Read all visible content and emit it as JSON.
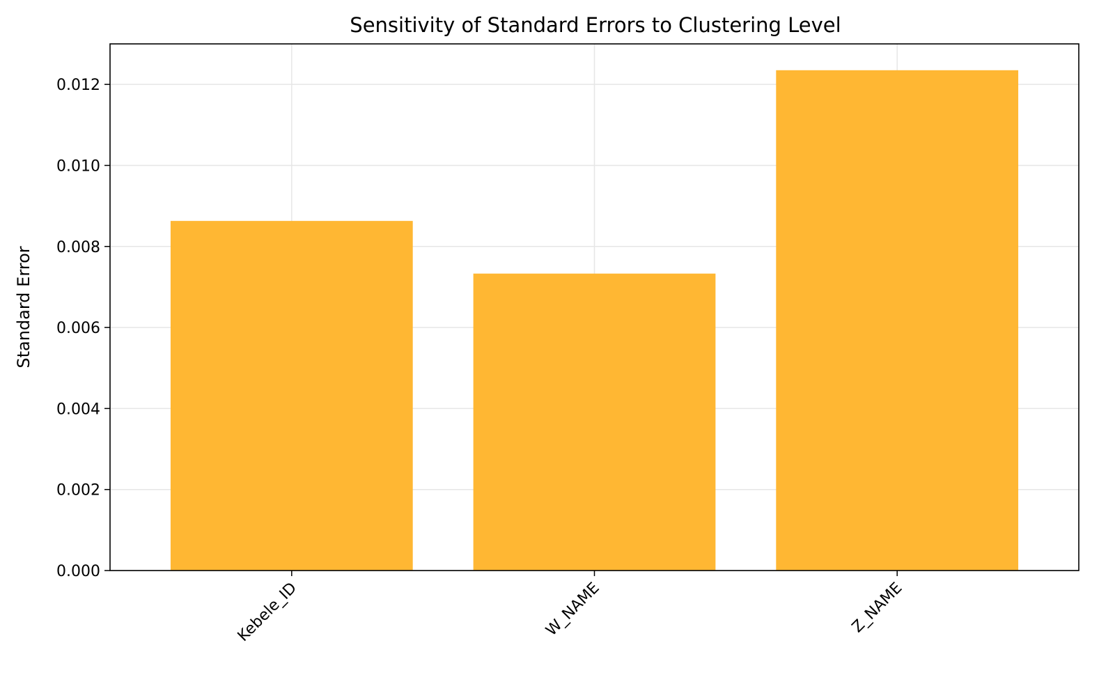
{
  "chart_data": {
    "type": "bar",
    "title": "Sensitivity of Standard Errors to Clustering Level",
    "xlabel": "",
    "ylabel": "Standard Error",
    "categories": [
      "Kebele_ID",
      "W_NAME",
      "Z_NAME"
    ],
    "values": [
      0.00863,
      0.00733,
      0.01235
    ],
    "ylim": [
      0,
      0.013
    ],
    "yticks": [
      0.0,
      0.002,
      0.004,
      0.006,
      0.008,
      0.01,
      0.012
    ],
    "ytick_labels": [
      "0.000",
      "0.002",
      "0.004",
      "0.006",
      "0.008",
      "0.010",
      "0.012"
    ],
    "grid": true,
    "bar_color": "#FFB733",
    "xtick_rotation": "45 degrees"
  }
}
